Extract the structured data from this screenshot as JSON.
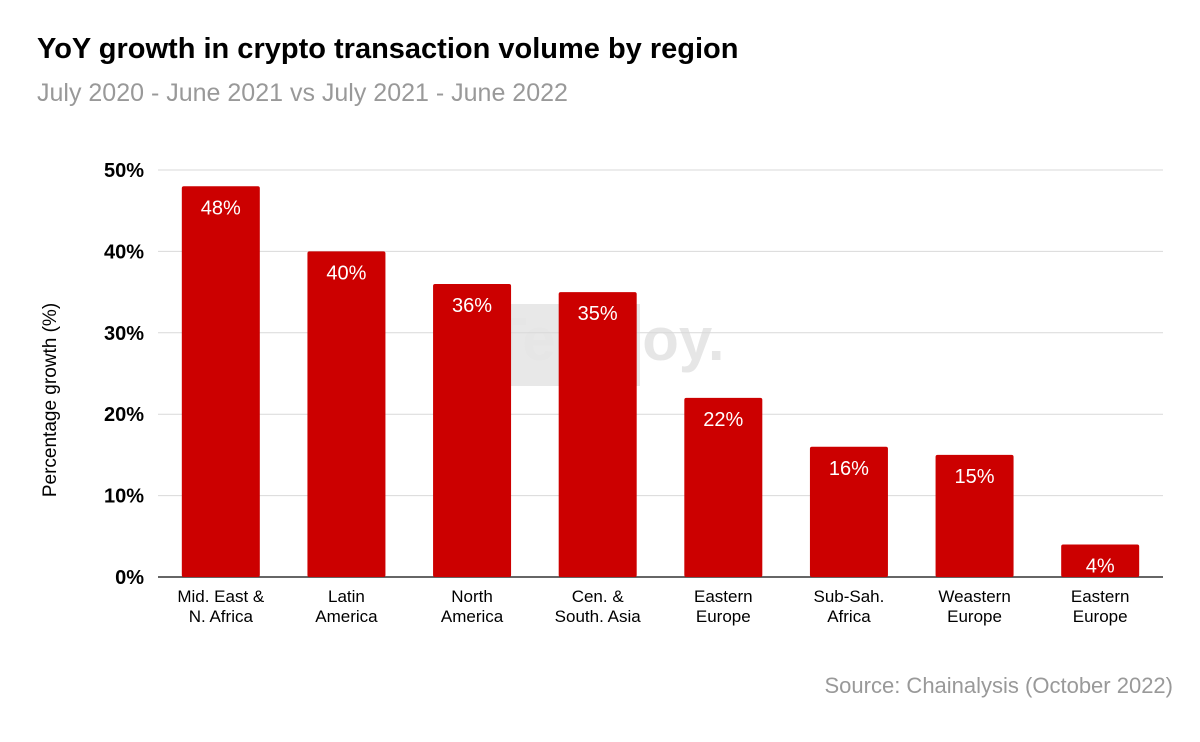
{
  "chart_data": {
    "type": "bar",
    "title": "YoY growth in crypto transaction volume by region",
    "subtitle": "July 2020 - June 2021 vs July 2021 - June 2022",
    "categories": [
      [
        "Mid. East &",
        "N. Africa"
      ],
      [
        "Latin",
        "America"
      ],
      [
        "North",
        "America"
      ],
      [
        "Cen. &",
        "South. Asia"
      ],
      [
        "Eastern",
        "Europe"
      ],
      [
        "Sub-Sah.",
        "Africa"
      ],
      [
        "Weastern",
        "Europe"
      ],
      [
        "Eastern",
        "Europe"
      ]
    ],
    "values": [
      48,
      40,
      36,
      35,
      22,
      16,
      15,
      4
    ],
    "data_labels": [
      "48%",
      "40%",
      "36%",
      "35%",
      "22%",
      "16%",
      "15%",
      "4%"
    ],
    "ylabel": "Percentage growth (%)",
    "xlabel": "",
    "ylim": [
      0,
      50
    ],
    "yticks": [
      0,
      10,
      20,
      30,
      40,
      50
    ],
    "ytick_labels": [
      "0%",
      "10%",
      "20%",
      "30%",
      "40%",
      "50%"
    ],
    "grid": true,
    "bar_color": "#cc0000",
    "source": "Source: Chainalysis (October 2022)",
    "watermark": "Tecnloy."
  }
}
